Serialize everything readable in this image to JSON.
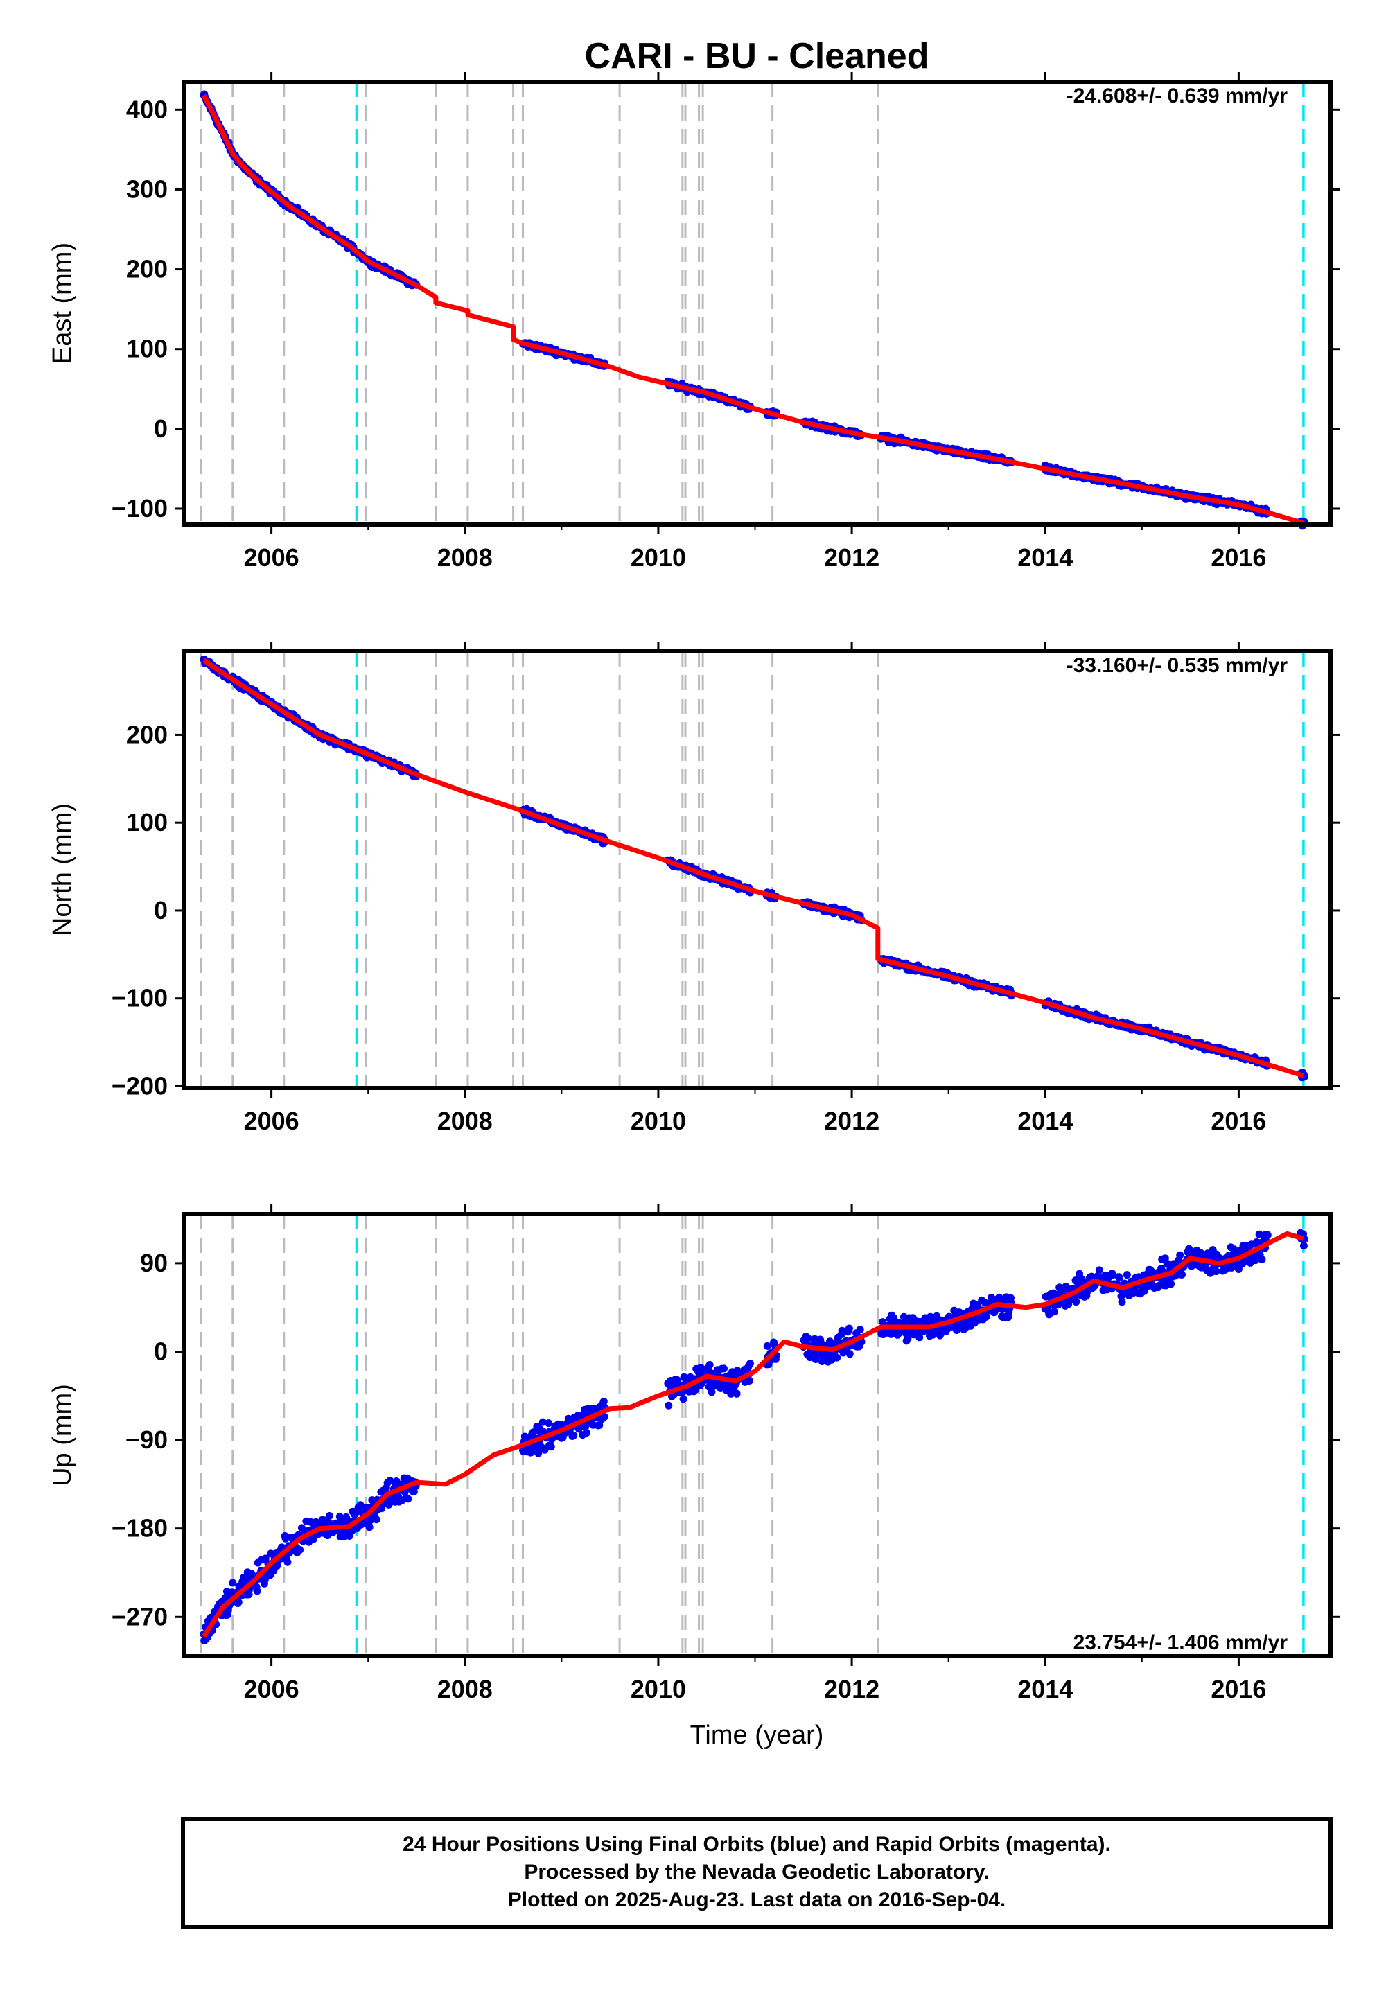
{
  "title": "CARI  - BU - Cleaned",
  "xlabel": "Time (year)",
  "footer": {
    "line1": "24 Hour Positions Using Final Orbits (blue) and Rapid Orbits (magenta).",
    "line2": "Processed by the Nevada Geodetic Laboratory.",
    "line3": "Plotted on 2025-Aug-23. Last data on 2016-Sep-04."
  },
  "colors": {
    "data": "#0000ee",
    "model": "#ff0000",
    "gray_lines": "#bbbbbb",
    "cyan_lines": "#00e5ee"
  },
  "chart_data": [
    {
      "type": "scatter",
      "panel": "East",
      "ylabel": "East (mm)",
      "rate": "-24.608+/- 0.639 mm/yr",
      "xlim": [
        2005.1,
        2016.95
      ],
      "ylim": [
        -120,
        435
      ],
      "xticks": [
        2006,
        2008,
        2010,
        2012,
        2014,
        2016
      ],
      "yticks": [
        400,
        300,
        200,
        100,
        0,
        -100
      ],
      "ytick_labels": [
        "400",
        "300",
        "200",
        "100",
        "0",
        "−100"
      ],
      "gray_lines": [
        2005.27,
        2005.6,
        2006.13,
        2006.98,
        2007.7,
        2008.03,
        2008.5,
        2008.6,
        2009.6,
        2010.25,
        2010.28,
        2010.42,
        2010.46,
        2011.18,
        2012.27
      ],
      "cyan_lines": [
        2006.88,
        2016.67
      ],
      "data_segments": [
        [
          2005.3,
          2007.5
        ],
        [
          2008.6,
          2009.45
        ],
        [
          2010.1,
          2010.95
        ],
        [
          2011.12,
          2011.22
        ],
        [
          2011.5,
          2012.1
        ],
        [
          2012.3,
          2013.65
        ],
        [
          2014.0,
          2016.3
        ],
        [
          2016.64,
          2016.68
        ]
      ],
      "scatter_noise_mm": 3,
      "model": {
        "x": [
          2005.3,
          2005.4,
          2005.5,
          2005.6,
          2005.7,
          2005.8,
          2005.9,
          2006.0,
          2006.2,
          2006.4,
          2006.6,
          2006.8,
          2007.0,
          2007.2,
          2007.5,
          2007.7,
          2007.7,
          2008.03,
          2008.03,
          2008.5,
          2008.5,
          2008.6,
          2009.0,
          2009.5,
          2009.8,
          2010.5,
          2011.0,
          2011.5,
          2012.0,
          2012.5,
          2013.0,
          2013.5,
          2014.0,
          2014.5,
          2015.0,
          2015.5,
          2016.0,
          2016.3,
          2016.67
        ],
        "y": [
          418,
          395,
          370,
          345,
          330,
          318,
          307,
          297,
          278,
          262,
          245,
          230,
          210,
          198,
          180,
          165,
          158,
          148,
          143,
          128,
          112,
          107,
          95,
          78,
          65,
          45,
          25,
          8,
          -5,
          -15,
          -27,
          -38,
          -50,
          -62,
          -73,
          -85,
          -95,
          -105,
          -118
        ]
      }
    },
    {
      "type": "scatter",
      "panel": "North",
      "ylabel": "North (mm)",
      "rate": "-33.160+/- 0.535 mm/yr",
      "xlim": [
        2005.1,
        2016.95
      ],
      "ylim": [
        -202,
        295
      ],
      "xticks": [
        2006,
        2008,
        2010,
        2012,
        2014,
        2016
      ],
      "yticks": [
        200,
        100,
        0,
        -100,
        -200
      ],
      "ytick_labels": [
        "200",
        "100",
        "0",
        "−100",
        "−200"
      ],
      "gray_lines": [
        2005.27,
        2005.6,
        2006.13,
        2006.98,
        2007.7,
        2008.03,
        2008.5,
        2008.6,
        2009.6,
        2010.25,
        2010.28,
        2010.42,
        2010.46,
        2011.18,
        2012.27
      ],
      "cyan_lines": [
        2006.88,
        2016.67
      ],
      "data_segments": [
        [
          2005.3,
          2007.5
        ],
        [
          2008.6,
          2009.45
        ],
        [
          2010.1,
          2010.95
        ],
        [
          2011.12,
          2011.22
        ],
        [
          2011.5,
          2012.1
        ],
        [
          2012.3,
          2013.65
        ],
        [
          2014.0,
          2016.3
        ],
        [
          2016.64,
          2016.68
        ]
      ],
      "scatter_noise_mm": 3,
      "model": {
        "x": [
          2005.3,
          2005.5,
          2006.0,
          2006.5,
          2007.0,
          2007.5,
          2008.0,
          2008.5,
          2009.0,
          2009.5,
          2010.0,
          2010.5,
          2011.0,
          2011.5,
          2012.0,
          2012.27,
          2012.27,
          2013.0,
          2013.5,
          2014.0,
          2014.5,
          2015.0,
          2015.5,
          2016.0,
          2016.67
        ],
        "y": [
          285,
          270,
          235,
          200,
          178,
          155,
          135,
          117,
          97,
          78,
          60,
          40,
          22,
          8,
          -5,
          -20,
          -55,
          -75,
          -90,
          -105,
          -122,
          -135,
          -150,
          -165,
          -188
        ]
      }
    },
    {
      "type": "scatter",
      "panel": "Up",
      "ylabel": "Up (mm)",
      "rate": "23.754+/- 1.406 mm/yr",
      "xlim": [
        2005.1,
        2016.95
      ],
      "ylim": [
        -310,
        140
      ],
      "xticks": [
        2006,
        2008,
        2010,
        2012,
        2014,
        2016
      ],
      "yticks": [
        90,
        0,
        -90,
        -180,
        -270
      ],
      "ytick_labels": [
        "90",
        "0",
        "−90",
        "−180",
        "−270"
      ],
      "gray_lines": [
        2005.27,
        2005.6,
        2006.13,
        2006.98,
        2007.7,
        2008.03,
        2008.5,
        2008.6,
        2009.6,
        2010.25,
        2010.28,
        2010.42,
        2010.46,
        2011.18,
        2012.27
      ],
      "cyan_lines": [
        2006.88,
        2016.67
      ],
      "data_segments": [
        [
          2005.3,
          2007.5
        ],
        [
          2008.6,
          2009.45
        ],
        [
          2010.1,
          2010.95
        ],
        [
          2011.12,
          2011.22
        ],
        [
          2011.5,
          2012.1
        ],
        [
          2012.3,
          2013.65
        ],
        [
          2014.0,
          2016.3
        ],
        [
          2016.64,
          2016.68
        ]
      ],
      "scatter_noise_mm": 11,
      "model": {
        "x": [
          2005.3,
          2005.5,
          2005.8,
          2006.0,
          2006.3,
          2006.5,
          2006.8,
          2007.0,
          2007.2,
          2007.5,
          2007.8,
          2008.0,
          2008.3,
          2008.6,
          2009.0,
          2009.5,
          2009.7,
          2010.0,
          2010.3,
          2010.5,
          2010.8,
          2011.0,
          2011.3,
          2011.5,
          2011.8,
          2012.0,
          2012.3,
          2012.5,
          2012.8,
          2013.0,
          2013.3,
          2013.5,
          2013.8,
          2014.0,
          2014.3,
          2014.5,
          2014.8,
          2015.0,
          2015.3,
          2015.5,
          2015.8,
          2016.0,
          2016.3,
          2016.5,
          2016.67
        ],
        "y": [
          -290,
          -260,
          -235,
          -215,
          -190,
          -180,
          -178,
          -165,
          -145,
          -133,
          -135,
          -125,
          -105,
          -95,
          -80,
          -58,
          -57,
          -45,
          -35,
          -25,
          -30,
          -20,
          10,
          5,
          2,
          10,
          25,
          25,
          25,
          30,
          40,
          48,
          45,
          48,
          60,
          72,
          65,
          72,
          80,
          95,
          90,
          95,
          110,
          120,
          115
        ]
      }
    }
  ]
}
